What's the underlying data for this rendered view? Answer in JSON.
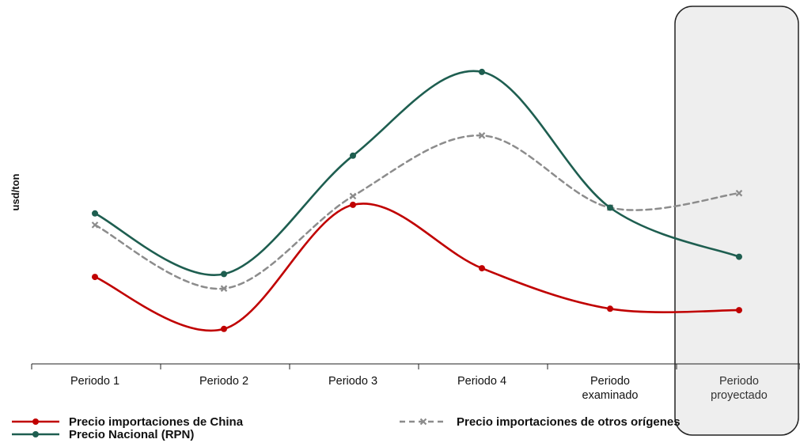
{
  "chart_data": {
    "type": "line",
    "title": "",
    "xlabel": "",
    "ylabel": "usd/ton",
    "categories": [
      "Periodo 1",
      "Periodo 2",
      "Periodo 3",
      "Periodo 4",
      "Periodo examinado",
      "Periodo proyectado"
    ],
    "ylim": [
      0,
      100
    ],
    "y_ticks_shown": false,
    "grid": false,
    "legend_position": "bottom",
    "highlighted_category": "Periodo proyectado",
    "series": [
      {
        "name": "Precio importaciones de China",
        "values": [
          26,
          8,
          51,
          29,
          15,
          14.5
        ],
        "color": "#c00000",
        "line_style": "solid",
        "marker": "circle"
      },
      {
        "name": "Precio importaciones de otros orígenes",
        "values": [
          44,
          22,
          54,
          75,
          50,
          55
        ],
        "color": "#8c8c8c",
        "line_style": "dashed",
        "marker": "x"
      },
      {
        "name": "Precio Nacional (RPN)",
        "values": [
          48,
          27,
          68,
          97,
          50,
          33
        ],
        "color": "#1e5e50",
        "line_style": "solid",
        "marker": "circle"
      }
    ]
  }
}
